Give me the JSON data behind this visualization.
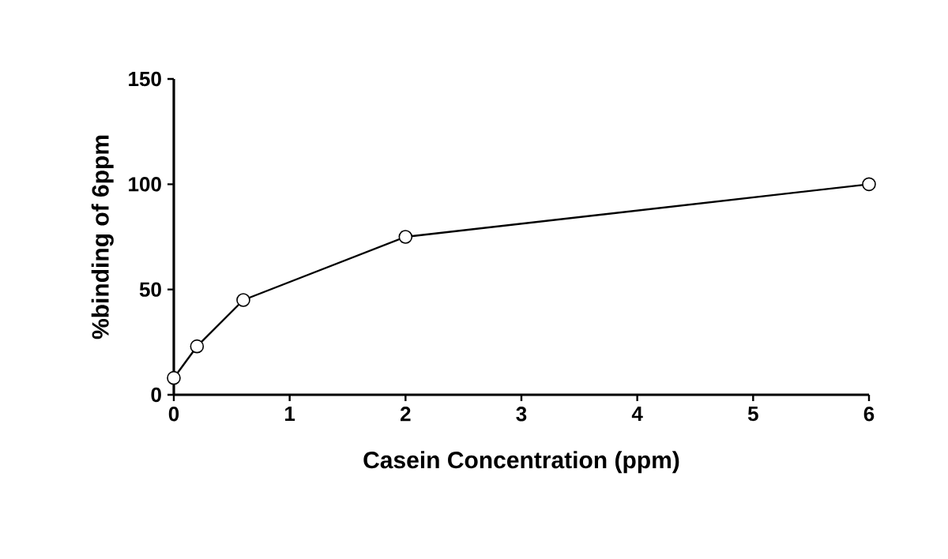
{
  "chart_data": {
    "type": "line",
    "xlabel": "Casein Concentration (ppm)",
    "ylabel": "%binding of 6ppm",
    "x": [
      0,
      0.2,
      0.6,
      2,
      6
    ],
    "series": [
      {
        "color": "#000000",
        "values": [
          8,
          23,
          45,
          75,
          100
        ]
      }
    ],
    "xlim": [
      0,
      6
    ],
    "xticks": [
      0,
      1,
      2,
      3,
      4,
      5,
      6
    ],
    "ylim": [
      0,
      150
    ],
    "yticks": [
      0,
      50,
      100,
      150
    ],
    "marker": "circle",
    "line_style": "solid",
    "grid": false
  }
}
